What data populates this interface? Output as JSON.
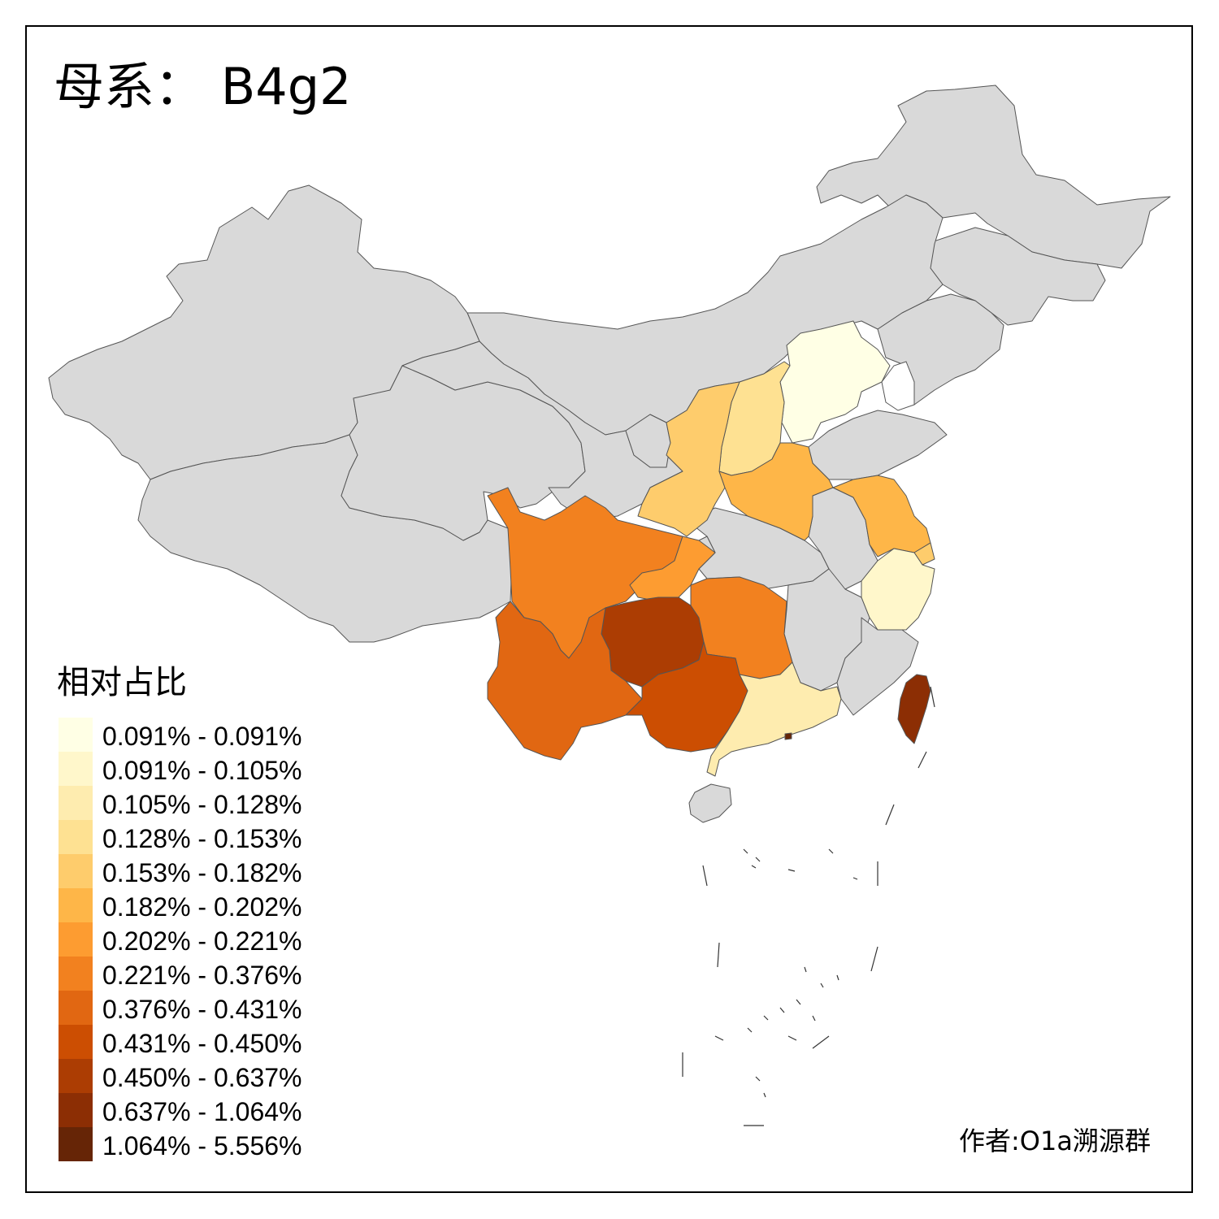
{
  "title": "母系： B4g2",
  "legend": {
    "title": "相对占比",
    "items": [
      {
        "label": "0.091% - 0.091%",
        "color": "#ffffe5"
      },
      {
        "label": "0.091% - 0.105%",
        "color": "#fff7cb"
      },
      {
        "label": "0.105% - 0.128%",
        "color": "#feecaf"
      },
      {
        "label": "0.128% - 0.153%",
        "color": "#fee192"
      },
      {
        "label": "0.153% - 0.182%",
        "color": "#fecc6c"
      },
      {
        "label": "0.182% - 0.202%",
        "color": "#feb648"
      },
      {
        "label": "0.202% - 0.221%",
        "color": "#fd9c31"
      },
      {
        "label": "0.221% - 0.376%",
        "color": "#f2811f"
      },
      {
        "label": "0.376% - 0.431%",
        "color": "#e16712"
      },
      {
        "label": "0.431% - 0.450%",
        "color": "#cc4e02"
      },
      {
        "label": "0.450% - 0.637%",
        "color": "#ac3d03"
      },
      {
        "label": "0.637% - 1.064%",
        "color": "#8c2e04"
      },
      {
        "label": "1.064% - 5.556%",
        "color": "#662506"
      }
    ]
  },
  "author": "作者:O1a溯源群",
  "colors": {
    "no_data": "#d9d9d9",
    "border": "#555555"
  }
}
